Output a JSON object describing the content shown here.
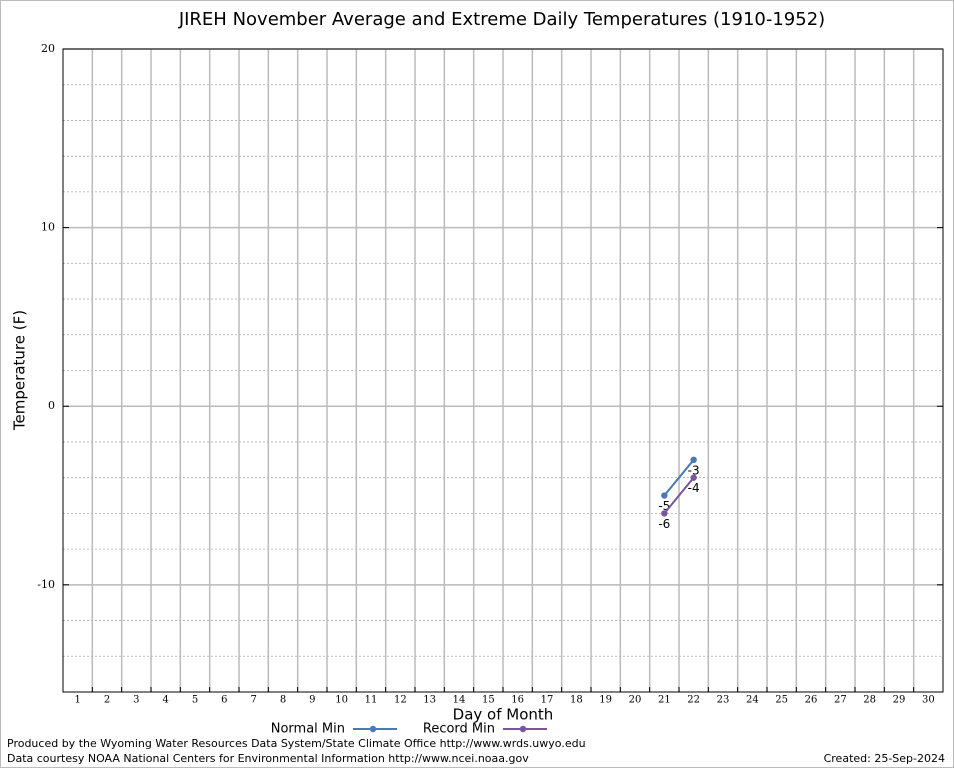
{
  "chart_data": {
    "type": "line",
    "title": "JIREH November Average and Extreme Daily Temperatures (1910-1952)",
    "xlabel": "Day of Month",
    "ylabel": "Temperature (F)",
    "x": [
      1,
      2,
      3,
      4,
      5,
      6,
      7,
      8,
      9,
      10,
      11,
      12,
      13,
      14,
      15,
      16,
      17,
      18,
      19,
      20,
      21,
      22,
      23,
      24,
      25,
      26,
      27,
      28,
      29,
      30
    ],
    "xlim": [
      0.5,
      30.5
    ],
    "xticks": [
      1,
      2,
      3,
      4,
      5,
      6,
      7,
      8,
      9,
      10,
      11,
      12,
      13,
      14,
      15,
      16,
      17,
      18,
      19,
      20,
      21,
      22,
      23,
      24,
      25,
      26,
      27,
      28,
      29,
      30
    ],
    "ylim": [
      -16,
      20
    ],
    "yticks": [
      -10,
      0,
      10,
      20
    ],
    "grid": true,
    "legend": "bottom",
    "series": [
      {
        "name": "Normal Min",
        "color": "#4a7ab5",
        "values": [
          null,
          null,
          null,
          null,
          null,
          null,
          null,
          null,
          null,
          null,
          null,
          null,
          null,
          null,
          null,
          null,
          null,
          null,
          null,
          null,
          -5,
          -3,
          null,
          null,
          null,
          null,
          null,
          null,
          null,
          null
        ]
      },
      {
        "name": "Record Min",
        "color": "#7a559e",
        "values": [
          null,
          null,
          null,
          null,
          null,
          null,
          null,
          null,
          null,
          null,
          null,
          null,
          null,
          null,
          null,
          null,
          null,
          null,
          null,
          null,
          -6,
          -4,
          null,
          null,
          null,
          null,
          null,
          null,
          null,
          null
        ]
      }
    ]
  },
  "footer": {
    "producer": "Produced by the Wyoming Water Resources Data System/State Climate Office http://www.wrds.uwyo.edu",
    "source": "Data courtesy NOAA National Centers for Environmental Information http://www.ncei.noaa.gov",
    "created": "Created:  25-Sep-2024"
  }
}
